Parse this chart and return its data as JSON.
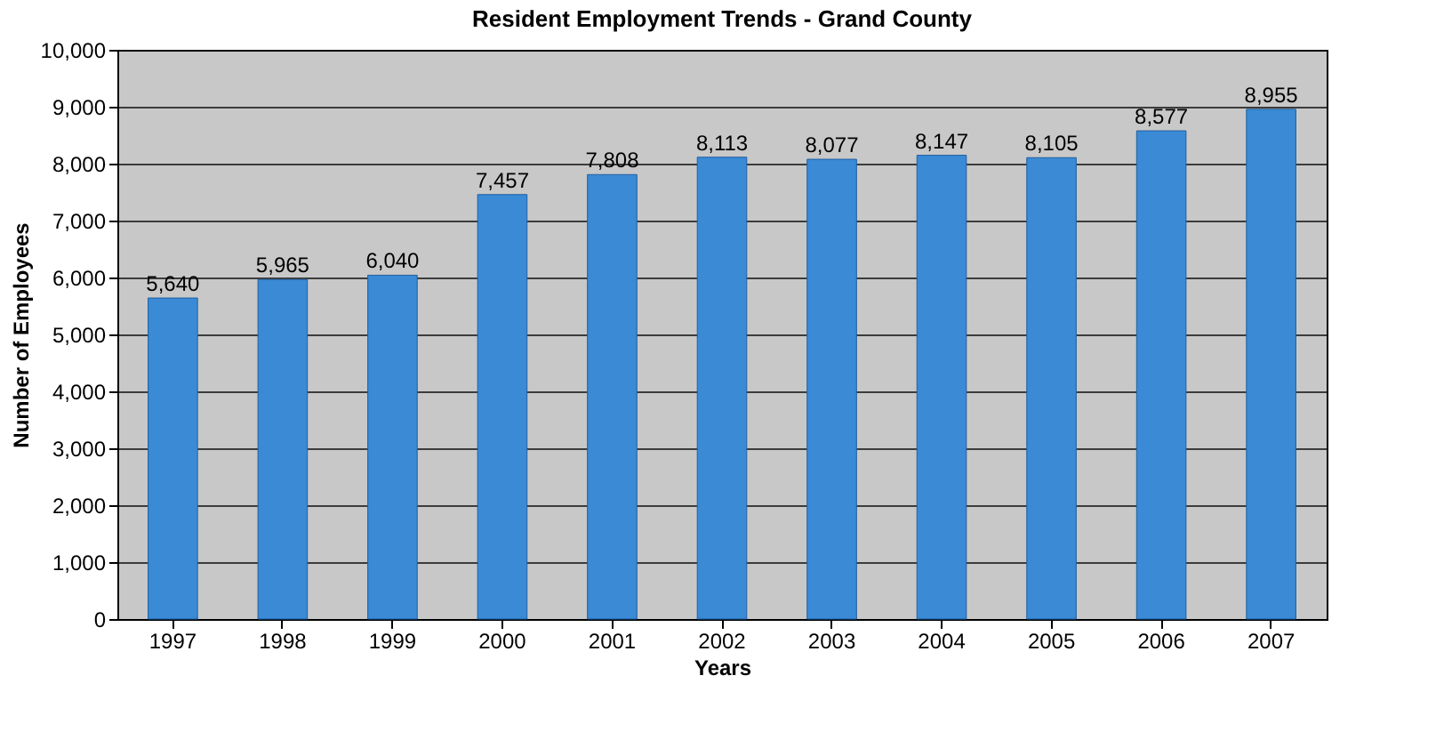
{
  "chart_data": {
    "type": "bar",
    "title": "Resident Employment Trends - Grand County",
    "xlabel": "Years",
    "ylabel": "Number of Employees",
    "categories": [
      "1997",
      "1998",
      "1999",
      "2000",
      "2001",
      "2002",
      "2003",
      "2004",
      "2005",
      "2006",
      "2007"
    ],
    "values": [
      5640,
      5965,
      6040,
      7457,
      7808,
      8113,
      8077,
      8147,
      8105,
      8577,
      8955
    ],
    "color": "#3a8ad6",
    "ylim": [
      0,
      10000
    ],
    "yticks": [
      0,
      {
        "value": 1000,
        "label": "1,000"
      },
      {
        "value": 2000,
        "label": "2,000"
      },
      {
        "value": 3000,
        "label": "3,000"
      },
      {
        "value": 4000,
        "label": "4,000"
      },
      {
        "value": 5000,
        "label": "5,000"
      },
      {
        "value": 6000,
        "label": "6,000"
      },
      {
        "value": 7000,
        "label": "7,000"
      },
      {
        "value": 8000,
        "label": "8,000"
      },
      {
        "value": 9000,
        "label": "9,000"
      },
      {
        "value": 10000,
        "label": "10,000"
      }
    ],
    "value_labels": [
      "5,640",
      "5,965",
      "6,040",
      "7,457",
      "7,808",
      "8,113",
      "8,077",
      "8,147",
      "8,105",
      "8,577",
      "8,955"
    ],
    "grid": "y"
  }
}
